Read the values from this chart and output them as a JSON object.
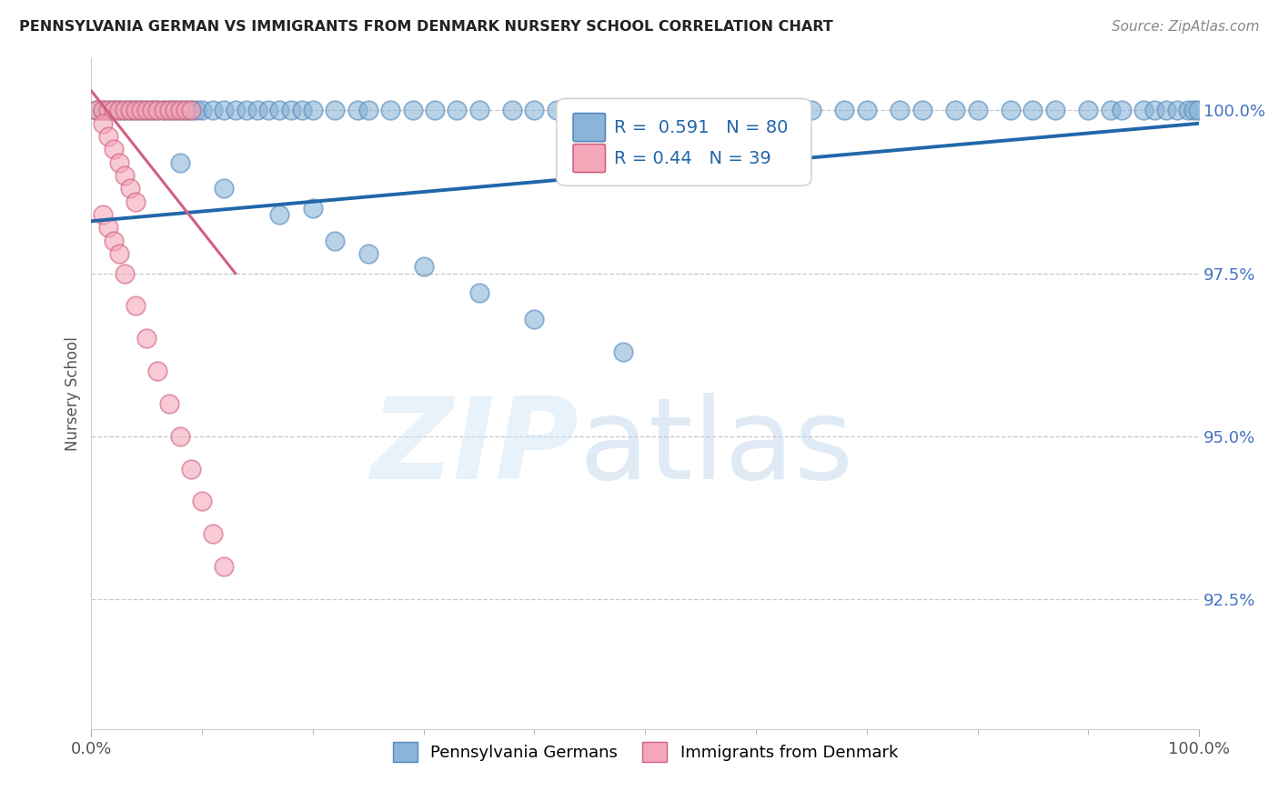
{
  "title": "PENNSYLVANIA GERMAN VS IMMIGRANTS FROM DENMARK NURSERY SCHOOL CORRELATION CHART",
  "source": "Source: ZipAtlas.com",
  "ylabel": "Nursery School",
  "legend_labels": [
    "Pennsylvania Germans",
    "Immigrants from Denmark"
  ],
  "blue_R": 0.591,
  "blue_N": 80,
  "pink_R": 0.44,
  "pink_N": 39,
  "xlim": [
    0.0,
    1.0
  ],
  "ylim": [
    0.905,
    1.008
  ],
  "yticks": [
    0.925,
    0.95,
    0.975,
    1.0
  ],
  "ytick_labels": [
    "92.5%",
    "95.0%",
    "97.5%",
    "100.0%"
  ],
  "xtick_positions": [
    0.0,
    1.0
  ],
  "xtick_labels": [
    "0.0%",
    "100.0%"
  ],
  "blue_color": "#8ab4d8",
  "pink_color": "#f4a7b9",
  "blue_edge_color": "#5588bb",
  "pink_edge_color": "#d06080",
  "blue_line_color": "#2266aa",
  "pink_line_color": "#cc3366",
  "background_color": "#ffffff",
  "blue_x": [
    0.005,
    0.01,
    0.015,
    0.02,
    0.025,
    0.03,
    0.035,
    0.04,
    0.045,
    0.05,
    0.055,
    0.06,
    0.065,
    0.07,
    0.075,
    0.08,
    0.085,
    0.09,
    0.095,
    0.1,
    0.11,
    0.12,
    0.13,
    0.14,
    0.15,
    0.16,
    0.17,
    0.18,
    0.19,
    0.2,
    0.22,
    0.24,
    0.25,
    0.27,
    0.29,
    0.31,
    0.33,
    0.35,
    0.38,
    0.4,
    0.42,
    0.44,
    0.46,
    0.48,
    0.5,
    0.52,
    0.55,
    0.58,
    0.6,
    0.62,
    0.65,
    0.68,
    0.7,
    0.73,
    0.75,
    0.78,
    0.8,
    0.83,
    0.85,
    0.87,
    0.9,
    0.92,
    0.93,
    0.95,
    0.96,
    0.97,
    0.98,
    0.99,
    0.995,
    0.999,
    0.08,
    0.12,
    0.17,
    0.22,
    0.3,
    0.35,
    0.4,
    0.48,
    0.25,
    0.2
  ],
  "blue_y": [
    1.0,
    1.0,
    1.0,
    1.0,
    1.0,
    1.0,
    1.0,
    1.0,
    1.0,
    1.0,
    1.0,
    1.0,
    1.0,
    1.0,
    1.0,
    1.0,
    1.0,
    1.0,
    1.0,
    1.0,
    1.0,
    1.0,
    1.0,
    1.0,
    1.0,
    1.0,
    1.0,
    1.0,
    1.0,
    1.0,
    1.0,
    1.0,
    1.0,
    1.0,
    1.0,
    1.0,
    1.0,
    1.0,
    1.0,
    1.0,
    1.0,
    1.0,
    1.0,
    1.0,
    1.0,
    1.0,
    1.0,
    1.0,
    1.0,
    1.0,
    1.0,
    1.0,
    1.0,
    1.0,
    1.0,
    1.0,
    1.0,
    1.0,
    1.0,
    1.0,
    1.0,
    1.0,
    1.0,
    1.0,
    1.0,
    1.0,
    1.0,
    1.0,
    1.0,
    1.0,
    0.992,
    0.988,
    0.984,
    0.98,
    0.976,
    0.972,
    0.968,
    0.963,
    0.978,
    0.985
  ],
  "pink_x": [
    0.005,
    0.01,
    0.015,
    0.02,
    0.025,
    0.03,
    0.035,
    0.04,
    0.045,
    0.05,
    0.055,
    0.06,
    0.065,
    0.07,
    0.075,
    0.08,
    0.085,
    0.09,
    0.01,
    0.015,
    0.02,
    0.025,
    0.03,
    0.035,
    0.04,
    0.01,
    0.015,
    0.02,
    0.025,
    0.03,
    0.04,
    0.05,
    0.06,
    0.07,
    0.08,
    0.09,
    0.1,
    0.11,
    0.12
  ],
  "pink_y": [
    1.0,
    1.0,
    1.0,
    1.0,
    1.0,
    1.0,
    1.0,
    1.0,
    1.0,
    1.0,
    1.0,
    1.0,
    1.0,
    1.0,
    1.0,
    1.0,
    1.0,
    1.0,
    0.998,
    0.996,
    0.994,
    0.992,
    0.99,
    0.988,
    0.986,
    0.984,
    0.982,
    0.98,
    0.978,
    0.975,
    0.97,
    0.965,
    0.96,
    0.955,
    0.95,
    0.945,
    0.94,
    0.935,
    0.93
  ],
  "blue_trend_x": [
    0.0,
    1.0
  ],
  "blue_trend_y": [
    0.983,
    0.998
  ],
  "pink_trend_x": [
    0.0,
    0.13
  ],
  "pink_trend_y": [
    1.003,
    0.975
  ]
}
